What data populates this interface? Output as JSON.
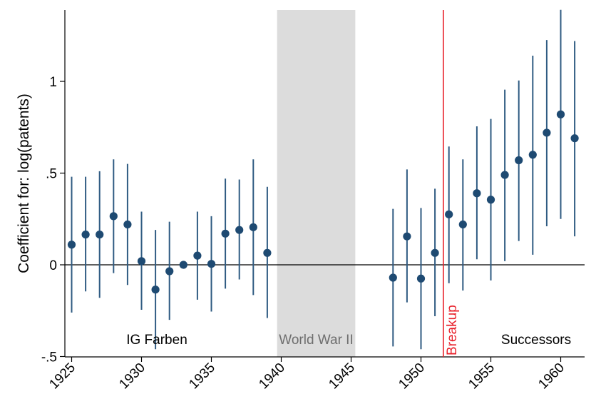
{
  "chart_data": {
    "type": "scatter",
    "subtype": "coefficient plot with 95% confidence intervals",
    "ylabel": "Coefficient for: log(patents)",
    "xlabel": "",
    "xlim": [
      1924.5,
      1961.5
    ],
    "ylim": [
      -0.5,
      1.4
    ],
    "x_ticks": [
      1925,
      1930,
      1935,
      1940,
      1945,
      1950,
      1955,
      1960
    ],
    "x_tick_labels": [
      "1925",
      "1930",
      "1935",
      "1940",
      "1945",
      "1950",
      "1955",
      "1960"
    ],
    "y_ticks": [
      -0.5,
      0,
      0.5,
      1
    ],
    "y_tick_labels": [
      "-.5",
      "0",
      ".5",
      "1"
    ],
    "reference_line_y": 0,
    "shaded_region": {
      "x": [
        1939.7,
        1945.3
      ],
      "label": "World War II",
      "color": "#dcdcdc"
    },
    "vertical_line": {
      "x": 1951.6,
      "label": "Breakup",
      "color": "#e8212b"
    },
    "annotations": [
      {
        "text": "IG Farben",
        "x": 1931,
        "y": -0.41
      },
      {
        "text": "Successors",
        "x": 1958,
        "y": -0.41
      }
    ],
    "marker_color": "#1e4a72",
    "ci_color": "#2f5b82",
    "points": [
      {
        "x": 1925,
        "y": 0.11,
        "lo": -0.26,
        "hi": 0.48
      },
      {
        "x": 1926,
        "y": 0.165,
        "lo": -0.145,
        "hi": 0.48
      },
      {
        "x": 1927,
        "y": 0.165,
        "lo": -0.18,
        "hi": 0.51
      },
      {
        "x": 1928,
        "y": 0.265,
        "lo": -0.045,
        "hi": 0.575
      },
      {
        "x": 1929,
        "y": 0.22,
        "lo": -0.11,
        "hi": 0.55
      },
      {
        "x": 1930,
        "y": 0.02,
        "lo": -0.245,
        "hi": 0.29
      },
      {
        "x": 1931,
        "y": -0.135,
        "lo": -0.46,
        "hi": 0.19
      },
      {
        "x": 1932,
        "y": -0.035,
        "lo": -0.3,
        "hi": 0.235
      },
      {
        "x": 1933,
        "y": 0.0
      },
      {
        "x": 1934,
        "y": 0.05,
        "lo": -0.19,
        "hi": 0.29
      },
      {
        "x": 1935,
        "y": 0.005,
        "lo": -0.255,
        "hi": 0.265
      },
      {
        "x": 1936,
        "y": 0.17,
        "lo": -0.13,
        "hi": 0.47
      },
      {
        "x": 1937,
        "y": 0.19,
        "lo": -0.08,
        "hi": 0.465
      },
      {
        "x": 1938,
        "y": 0.205,
        "lo": -0.165,
        "hi": 0.575
      },
      {
        "x": 1939,
        "y": 0.065,
        "lo": -0.29,
        "hi": 0.425
      },
      {
        "x": 1948,
        "y": -0.07,
        "lo": -0.445,
        "hi": 0.305
      },
      {
        "x": 1949,
        "y": 0.155,
        "lo": -0.205,
        "hi": 0.52
      },
      {
        "x": 1950,
        "y": -0.075,
        "lo": -0.46,
        "hi": 0.31
      },
      {
        "x": 1951,
        "y": 0.065,
        "lo": -0.28,
        "hi": 0.415
      },
      {
        "x": 1952,
        "y": 0.275,
        "lo": -0.1,
        "hi": 0.645
      },
      {
        "x": 1953,
        "y": 0.22,
        "lo": -0.14,
        "hi": 0.575
      },
      {
        "x": 1954,
        "y": 0.39,
        "lo": 0.03,
        "hi": 0.755
      },
      {
        "x": 1955,
        "y": 0.355,
        "lo": -0.085,
        "hi": 0.795
      },
      {
        "x": 1956,
        "y": 0.49,
        "lo": 0.02,
        "hi": 0.955
      },
      {
        "x": 1957,
        "y": 0.57,
        "lo": 0.13,
        "hi": 1.005
      },
      {
        "x": 1958,
        "y": 0.6,
        "lo": 0.055,
        "hi": 1.14
      },
      {
        "x": 1959,
        "y": 0.72,
        "lo": 0.21,
        "hi": 1.225
      },
      {
        "x": 1960,
        "y": 0.82,
        "lo": 0.25,
        "hi": 1.39
      },
      {
        "x": 1961,
        "y": 0.69,
        "lo": 0.155,
        "hi": 1.22
      }
    ]
  }
}
